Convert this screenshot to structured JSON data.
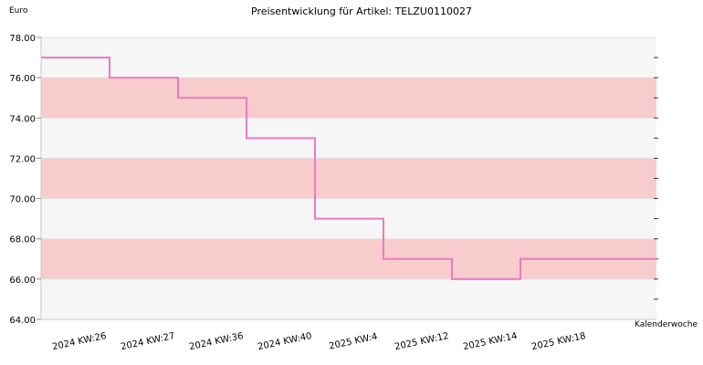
{
  "chart_data": {
    "type": "line",
    "title": "Preisentwicklung für Artikel: TELZU0110027",
    "ylabel": "Euro",
    "xlabel": "Kalenderwoche",
    "ylim": [
      64,
      78
    ],
    "yticks": [
      "64.00",
      "66.00",
      "68.00",
      "70.00",
      "72.00",
      "74.00",
      "76.00",
      "78.00"
    ],
    "categories": [
      "2024 KW:26",
      "2024 KW:27",
      "2024 KW:36",
      "2024 KW:40",
      "2025 KW:4",
      "2025 KW:12",
      "2025 KW:14",
      "2025 KW:18"
    ],
    "values": [
      77.0,
      76.0,
      75.0,
      73.0,
      69.0,
      67.0,
      66.0,
      67.0
    ],
    "step": true,
    "grid": true,
    "band_colors": [
      "#f6f6f6",
      "#f8cccc"
    ],
    "line_color": "#e97bc4"
  }
}
